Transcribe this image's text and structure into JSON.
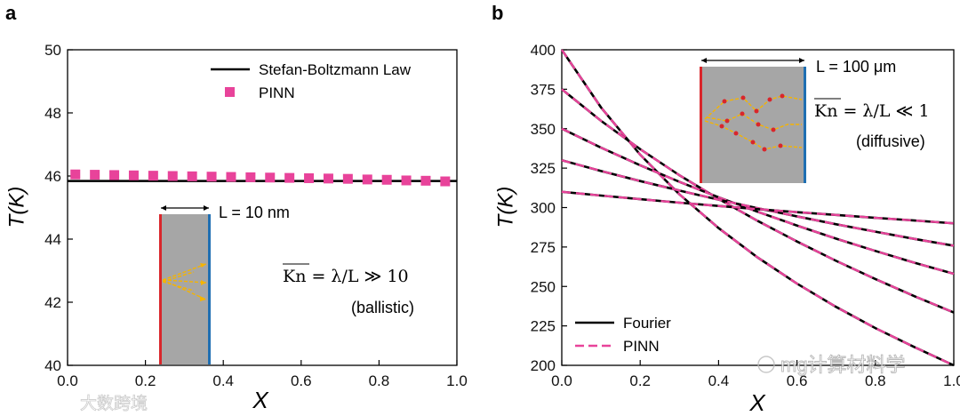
{
  "figure": {
    "panel_a_letter": "a",
    "panel_b_letter": "b",
    "watermark_left": "大数跨境",
    "watermark_right": "mg计算材料学"
  },
  "chart_data": [
    {
      "type": "line",
      "panel": "a",
      "xlabel": "X",
      "ylabel": "T(K)",
      "xlim": [
        0,
        1
      ],
      "ylim": [
        40,
        50
      ],
      "x_ticks": [
        "0.0",
        "0.2",
        "0.4",
        "0.6",
        "0.8",
        "1.0"
      ],
      "y_ticks": [
        "40",
        "42",
        "44",
        "46",
        "48",
        "50"
      ],
      "legend": {
        "placement": "top-right",
        "entries": [
          "Stefan-Boltzmann Law",
          "PINN"
        ]
      },
      "series": [
        {
          "name": "Stefan-Boltzmann Law",
          "style": "solid-line",
          "color": "#000000",
          "x": [
            0,
            1
          ],
          "y": [
            45.84,
            45.84
          ]
        },
        {
          "name": "PINN",
          "style": "square-markers",
          "color": "#e8439a",
          "x": [
            0.02,
            0.07,
            0.12,
            0.17,
            0.22,
            0.27,
            0.32,
            0.37,
            0.42,
            0.47,
            0.52,
            0.57,
            0.62,
            0.67,
            0.72,
            0.77,
            0.82,
            0.87,
            0.92,
            0.97
          ],
          "y": [
            46.05,
            46.04,
            46.03,
            46.02,
            46.01,
            46.0,
            45.99,
            45.98,
            45.97,
            45.96,
            45.95,
            45.94,
            45.93,
            45.92,
            45.91,
            45.89,
            45.88,
            45.86,
            45.85,
            45.83
          ]
        }
      ],
      "inset": {
        "length_label": "L = 10 nm",
        "kn_label": "Kn = λ/L ≫ 10",
        "regime": "(ballistic)"
      }
    },
    {
      "type": "line",
      "panel": "b",
      "xlabel": "X",
      "ylabel": "T(K)",
      "xlim": [
        0,
        1
      ],
      "ylim": [
        200,
        400
      ],
      "x_ticks": [
        "0.0",
        "0.2",
        "0.4",
        "0.6",
        "0.8",
        "1.0"
      ],
      "y_ticks": [
        "200",
        "225",
        "250",
        "275",
        "300",
        "325",
        "350",
        "375",
        "400"
      ],
      "legend": {
        "placement": "bottom-left",
        "entries": [
          "Fourier",
          "PINN"
        ]
      },
      "colors": {
        "fourier": "#000000",
        "pinn": "#e8439a"
      },
      "series": [
        {
          "name": "",
          "x": [
            0,
            0.1,
            0.2,
            0.3,
            0.4,
            0.5,
            0.6,
            0.7,
            0.8,
            0.9,
            1.0
          ],
          "y": [
            400,
            363.5,
            333.5,
            308.4,
            287.0,
            268.3,
            251.8,
            237.0,
            223.6,
            211.5,
            200
          ]
        },
        {
          "name": "",
          "x": [
            0,
            0.1,
            0.2,
            0.3,
            0.4,
            0.5,
            0.6,
            0.7,
            0.8,
            0.9,
            1.0
          ],
          "y": [
            375,
            355.0,
            337.0,
            320.5,
            305.5,
            291.5,
            278.5,
            266.2,
            254.7,
            243.8,
            233.5
          ]
        },
        {
          "name": "",
          "x": [
            0,
            0.1,
            0.2,
            0.3,
            0.4,
            0.5,
            0.6,
            0.7,
            0.8,
            0.9,
            1.0
          ],
          "y": [
            350,
            338.0,
            326.8,
            316.3,
            306.5,
            297.3,
            288.6,
            280.3,
            272.5,
            265.0,
            258.0
          ]
        },
        {
          "name": "",
          "x": [
            0,
            0.1,
            0.2,
            0.3,
            0.4,
            0.5,
            0.6,
            0.7,
            0.8,
            0.9,
            1.0
          ],
          "y": [
            330,
            323.2,
            316.8,
            310.8,
            305.0,
            299.6,
            294.4,
            289.4,
            284.7,
            280.1,
            275.8
          ]
        },
        {
          "name": "",
          "x": [
            0,
            0.1,
            0.2,
            0.3,
            0.4,
            0.5,
            0.6,
            0.7,
            0.8,
            0.9,
            1.0
          ],
          "y": [
            310,
            307.6,
            305.3,
            303.1,
            301.0,
            299.0,
            297.1,
            295.3,
            293.5,
            291.8,
            290.0
          ]
        }
      ],
      "inset": {
        "length_label": "L = 100 μm",
        "kn_label": "Kn = λ/L ≪ 1",
        "regime": "(diffusive)"
      }
    }
  ]
}
